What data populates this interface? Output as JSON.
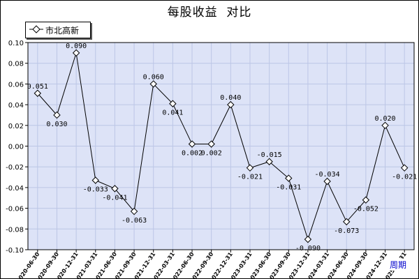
{
  "chart_data": {
    "type": "line",
    "title": "每股收益  对比",
    "xlabel": "",
    "ylabel": "",
    "ylim": [
      -0.1,
      0.1
    ],
    "y_ticks": [
      "0.10",
      "0.08",
      "0.06",
      "0.04",
      "0.02",
      "0.00",
      "-0.02",
      "-0.04",
      "-0.06",
      "-0.08",
      "-0.10"
    ],
    "grid": true,
    "legend_position": "top-left",
    "categories": [
      "2020-06-30",
      "2020-09-30",
      "2020-12-31",
      "2021-03-31",
      "2021-06-30",
      "2021-09-30",
      "2021-12-31",
      "2022-03-31",
      "2022-06-30",
      "2022-09-30",
      "2022-12-31",
      "2023-03-31",
      "2023-06-30",
      "2023-09-30",
      "2023-12-31",
      "2024-03-31",
      "2024-06-30",
      "2024-09-30",
      "2024-12-31",
      "2025-03-31"
    ],
    "series": [
      {
        "name": "市北高新",
        "values": [
          0.051,
          0.03,
          0.09,
          -0.033,
          -0.041,
          -0.063,
          0.06,
          0.041,
          0.002,
          0.002,
          0.04,
          -0.021,
          -0.015,
          -0.031,
          -0.09,
          -0.034,
          -0.073,
          -0.052,
          0.02,
          -0.021
        ],
        "labels": [
          "0.051",
          "0.030",
          "0.090",
          "-0.033",
          "-0.041",
          "-0.063",
          "0.060",
          "0.041",
          "0.002",
          "0.002",
          "0.040",
          "-0.021",
          "-0.015",
          "-0.031",
          "-0.090",
          "-0.034",
          "-0.073",
          "-0.052",
          "0.020",
          "-0.021"
        ]
      }
    ]
  },
  "period_link_label": "周期",
  "colors": {
    "plot_background": "#dde3f7",
    "grid": "#bcc6e6",
    "line": "#000000",
    "marker_fill": "#ffffff",
    "link": "#0000cc"
  }
}
